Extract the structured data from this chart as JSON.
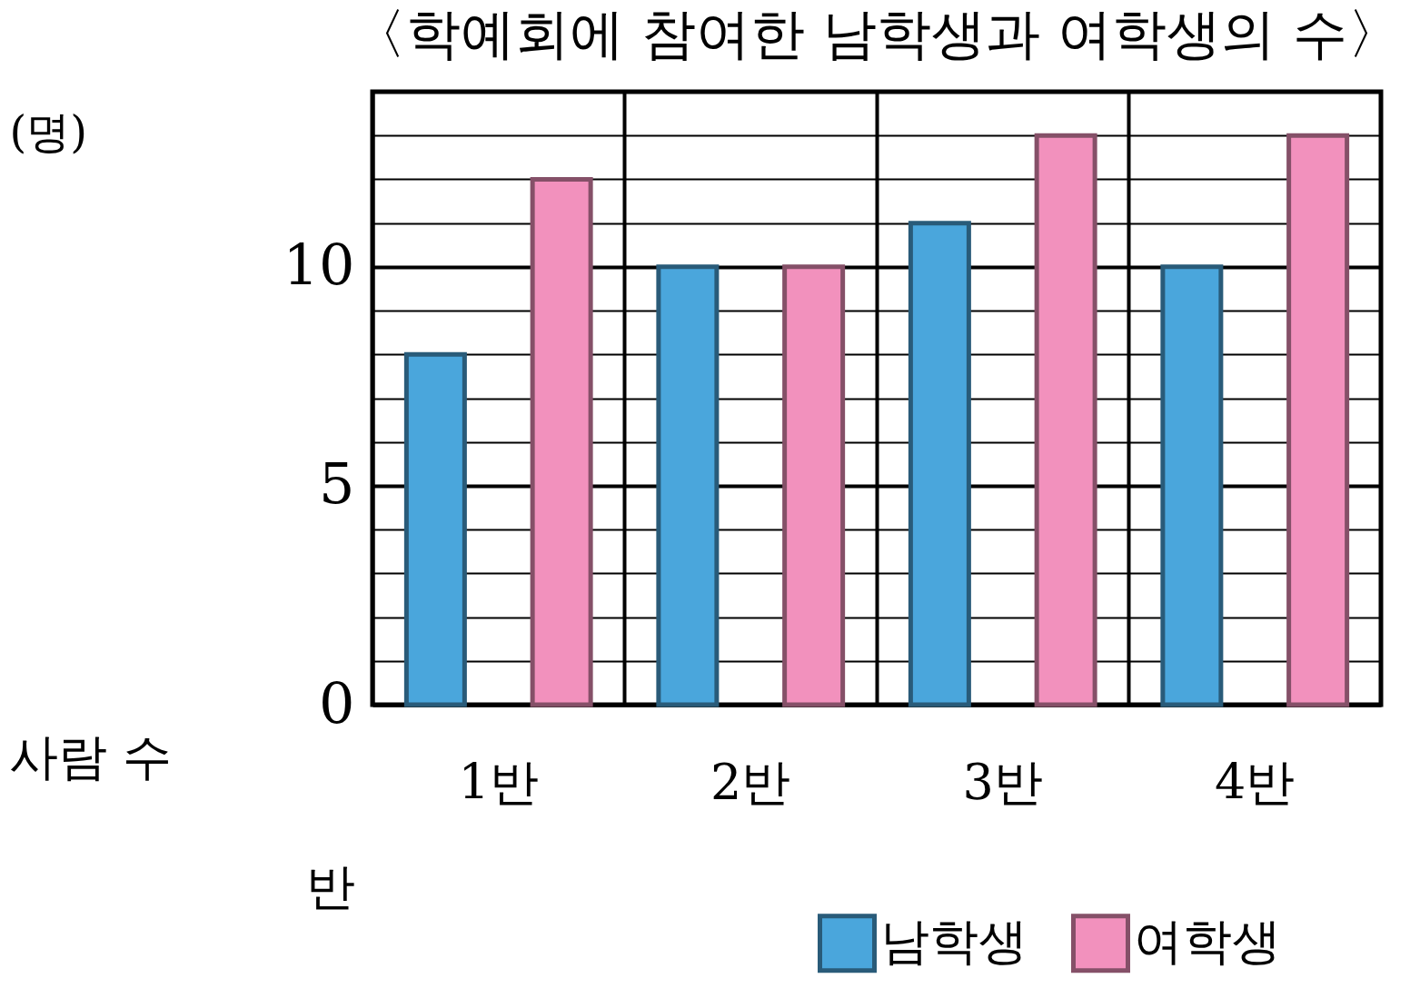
{
  "chart_data": {
    "type": "bar",
    "title": "〈학예회에 참여한 남학생과 여학생의 수〉",
    "categories": [
      "1반",
      "2반",
      "3반",
      "4반"
    ],
    "series": [
      {
        "name": "남학생",
        "color": "#4aa6dc",
        "values": [
          8,
          10,
          11,
          10
        ]
      },
      {
        "name": "여학생",
        "color": "#f291bd",
        "values": [
          12,
          10,
          13,
          13
        ]
      }
    ],
    "ylabel": "(명)",
    "xlabel": "반",
    "annotations": [
      "사람 수"
    ],
    "ylim": [
      0,
      14
    ],
    "yticks": [
      0,
      {
        "value": 1,
        "label": null
      },
      {
        "value": 2,
        "label": null
      },
      {
        "value": 3,
        "label": null
      },
      {
        "value": 4,
        "label": null
      },
      5,
      {
        "value": 6,
        "label": null
      },
      {
        "value": 7,
        "label": null
      },
      {
        "value": 8,
        "label": null
      },
      {
        "value": 9,
        "label": null
      },
      10,
      {
        "value": 11,
        "label": null
      },
      {
        "value": 12,
        "label": null
      },
      {
        "value": 13,
        "label": null
      }
    ],
    "grid": true,
    "legend": "bottom right"
  }
}
